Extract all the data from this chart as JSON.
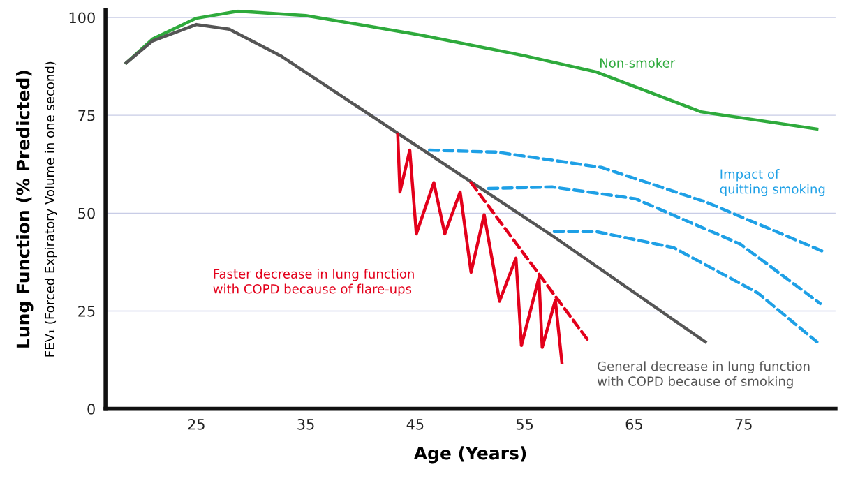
{
  "chart_data": {
    "type": "line",
    "xlabel": "Age (Years)",
    "ylabel": "Lung Function (% Predicted)\nFEV₁ (Forced Expiratory Volume in one second)",
    "xlim": [
      16.7,
      83.4
    ],
    "xticks": [
      25,
      35,
      45,
      55,
      65,
      75
    ],
    "ylim": [
      0,
      102
    ],
    "yticks": [
      0,
      25,
      50,
      75,
      100
    ],
    "grid": "y",
    "series": [
      {
        "name": "Non-smoker",
        "color": "#2eaa3c",
        "x": [
          18.6,
          21,
          25,
          28.8,
          35,
          45.5,
          55,
          61.5,
          71.1,
          81.7
        ],
        "values": [
          88.4,
          94.5,
          99.8,
          101.6,
          100.5,
          95.5,
          90.2,
          86.1,
          75.9,
          71.5
        ]
      },
      {
        "name": "General decrease in lung function\nwith COPD because of smoking",
        "color": "#555555",
        "x": [
          18.6,
          21,
          25,
          28,
          32.7,
          43.3,
          57.7,
          71.5
        ],
        "values": [
          88.4,
          94,
          98.2,
          97,
          90.2,
          70.6,
          43.9,
          17.1
        ]
      },
      {
        "name": "Faster decrease in lung function\nwith COPD because of flare-ups",
        "color": "#e3001b",
        "x": [
          43.4,
          43.6,
          44.5,
          45.1,
          46.7,
          47.7,
          49.1,
          50.1,
          51.3,
          52.7,
          54.2,
          54.7,
          56.3,
          56.6,
          57.8,
          58.4
        ],
        "values": [
          70.1,
          55.4,
          66.1,
          44.7,
          57.8,
          44.7,
          55.4,
          34.9,
          49.6,
          27.5,
          38.5,
          16.2,
          33.5,
          15.7,
          27.8,
          11.8
        ]
      },
      {
        "color": "#e3001b",
        "line_style": "dashed",
        "x": [
          50.1,
          60.9
        ],
        "values": [
          57.8,
          17.1
        ]
      },
      {
        "name": "Impact of\nquitting smoking",
        "color": "#1ea0e6",
        "line_style": "dashed",
        "x": [
          46.3,
          52.4,
          62.0,
          71.6,
          82.2
        ],
        "values": [
          66.1,
          65.6,
          61.7,
          52.8,
          40.3
        ]
      },
      {
        "color": "#1ea0e6",
        "line_style": "dashed",
        "x": [
          51.7,
          57.5,
          65.1,
          74.7,
          82.0
        ],
        "values": [
          56.3,
          56.7,
          53.7,
          42.1,
          26.9
        ]
      },
      {
        "color": "#1ea0e6",
        "line_style": "dashed",
        "x": [
          57.7,
          61.5,
          68.6,
          76.3,
          81.7
        ],
        "values": [
          45.3,
          45.3,
          41.2,
          29.6,
          17.1
        ]
      }
    ]
  }
}
